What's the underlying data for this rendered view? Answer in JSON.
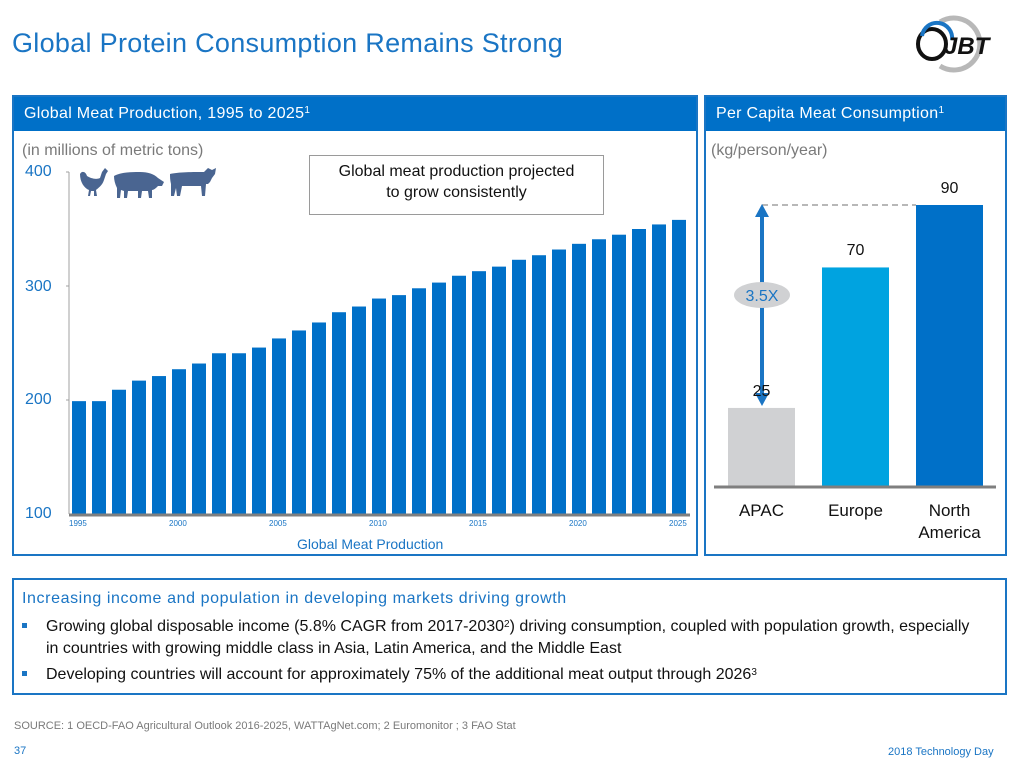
{
  "page": {
    "title": "Global Protein Consumption Remains Strong",
    "logo_text": "JBT",
    "footer_source": "SOURCE:  1 OECD-FAO Agricultural Outlook 2016-2025, WATTAgNet.com; 2 Euromonitor ; 3 FAO Stat",
    "page_number": "37",
    "event": "2018 Technology Day"
  },
  "left_panel": {
    "header": "Global Meat Production, 1995 to 2025",
    "header_sup": "1",
    "unit_label": "(in millions of metric tons)",
    "callout_line1": "Global meat production projected",
    "callout_line2": "to grow consistently",
    "icons": [
      "chicken-icon",
      "pig-icon",
      "cow-icon"
    ]
  },
  "right_panel": {
    "header": "Per Capita Meat Consumption",
    "header_sup": "1",
    "unit_label": "(kg/person/year)",
    "multiplier_label": "3.5X"
  },
  "bottom": {
    "title": "Increasing income and population in developing markets driving growth",
    "bullet1_pre": "Growing global disposable income (5.8% CAGR from 2017-2030",
    "bullet1_sup": "2",
    "bullet1_post": ") driving consumption, coupled with population growth, especially in countries with growing middle class in Asia, Latin America, and the Middle East",
    "bullet2_pre": "Developing countries will account for approximately 75% of the additional meat output through 2026",
    "bullet2_sup": "3"
  },
  "colors": {
    "brand_blue": "#0070c8",
    "title_blue": "#1a75c4",
    "europe_blue": "#00a3e0",
    "apac_gray": "#d0d1d3"
  },
  "chart_data": [
    {
      "type": "bar",
      "title": "Global Meat Production, 1995 to 2025",
      "xlabel": "Global Meat Production",
      "ylabel": "(in millions of metric tons)",
      "ylim": [
        100,
        400
      ],
      "yticks": [
        100,
        200,
        300,
        400
      ],
      "xtick_labels": [
        "1995",
        "2000",
        "2005",
        "2010",
        "2015",
        "2020",
        "2025"
      ],
      "categories": [
        "1995",
        "1996",
        "1997",
        "1998",
        "1999",
        "2000",
        "2001",
        "2002",
        "2003",
        "2004",
        "2005",
        "2006",
        "2007",
        "2008",
        "2009",
        "2010",
        "2011",
        "2012",
        "2013",
        "2014",
        "2015",
        "2016",
        "2017",
        "2018",
        "2019",
        "2020",
        "2021",
        "2022",
        "2023",
        "2024",
        "2025"
      ],
      "values": [
        199,
        199,
        209,
        217,
        221,
        227,
        232,
        241,
        241,
        246,
        254,
        261,
        268,
        277,
        282,
        289,
        292,
        298,
        303,
        309,
        313,
        317,
        323,
        327,
        332,
        337,
        341,
        345,
        350,
        354,
        358
      ],
      "grid": false,
      "color": "#0070c8"
    },
    {
      "type": "bar",
      "title": "Per Capita Meat Consumption",
      "ylabel": "(kg/person/year)",
      "categories": [
        "APAC",
        "Europe",
        "North America"
      ],
      "category_lines": [
        [
          "APAC"
        ],
        [
          "Europe"
        ],
        [
          "North",
          "America"
        ]
      ],
      "values": [
        25,
        70,
        90
      ],
      "value_labels": [
        "25",
        "70",
        "90"
      ],
      "colors": [
        "#d0d1d3",
        "#00a3e0",
        "#0070c8"
      ],
      "annotation": "3.5X",
      "ylim": [
        0,
        90
      ]
    }
  ]
}
